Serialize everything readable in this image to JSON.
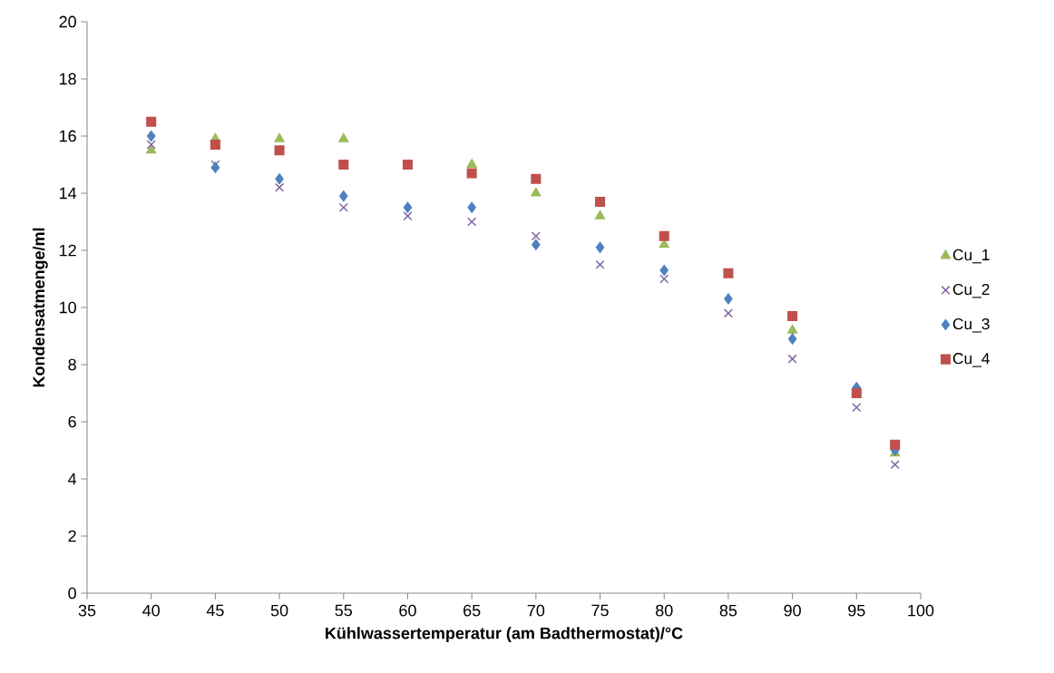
{
  "chart_data": {
    "type": "scatter",
    "xlabel": "Kühlwassertemperatur (am Badthermostat)/°C",
    "ylabel": "Kondensatmenge/ml",
    "x": [
      40,
      45,
      50,
      55,
      60,
      65,
      70,
      75,
      80,
      85,
      90,
      95,
      98
    ],
    "series": [
      {
        "name": "Cu_1",
        "color": "#9bbb59",
        "marker": "triangle",
        "values": [
          15.5,
          15.9,
          15.9,
          15.9,
          null,
          15.0,
          14.0,
          13.2,
          12.2,
          null,
          9.2,
          null,
          4.9
        ]
      },
      {
        "name": "Cu_2",
        "color": "#8064a2",
        "marker": "cross",
        "values": [
          15.7,
          15.0,
          14.2,
          13.5,
          13.2,
          13.0,
          12.5,
          11.5,
          11.0,
          9.8,
          8.2,
          6.5,
          4.5
        ]
      },
      {
        "name": "Cu_3",
        "color": "#4f81bd",
        "marker": "diamond",
        "values": [
          16.0,
          14.9,
          14.5,
          13.9,
          13.5,
          13.5,
          12.2,
          12.1,
          11.3,
          10.3,
          8.9,
          7.2,
          5.0
        ]
      },
      {
        "name": "Cu_4",
        "color": "#c0504d",
        "marker": "square",
        "values": [
          16.5,
          15.7,
          15.5,
          15.0,
          15.0,
          14.7,
          14.5,
          13.7,
          12.5,
          11.2,
          9.7,
          7.0,
          5.2
        ]
      }
    ],
    "xlim": [
      35,
      100
    ],
    "xticks": [
      35,
      40,
      45,
      50,
      55,
      60,
      65,
      70,
      75,
      80,
      85,
      90,
      95,
      100
    ],
    "ylim": [
      0,
      20
    ],
    "yticks": [
      0,
      2,
      4,
      6,
      8,
      10,
      12,
      14,
      16,
      18,
      20
    ],
    "grid": false,
    "legend": "right"
  }
}
